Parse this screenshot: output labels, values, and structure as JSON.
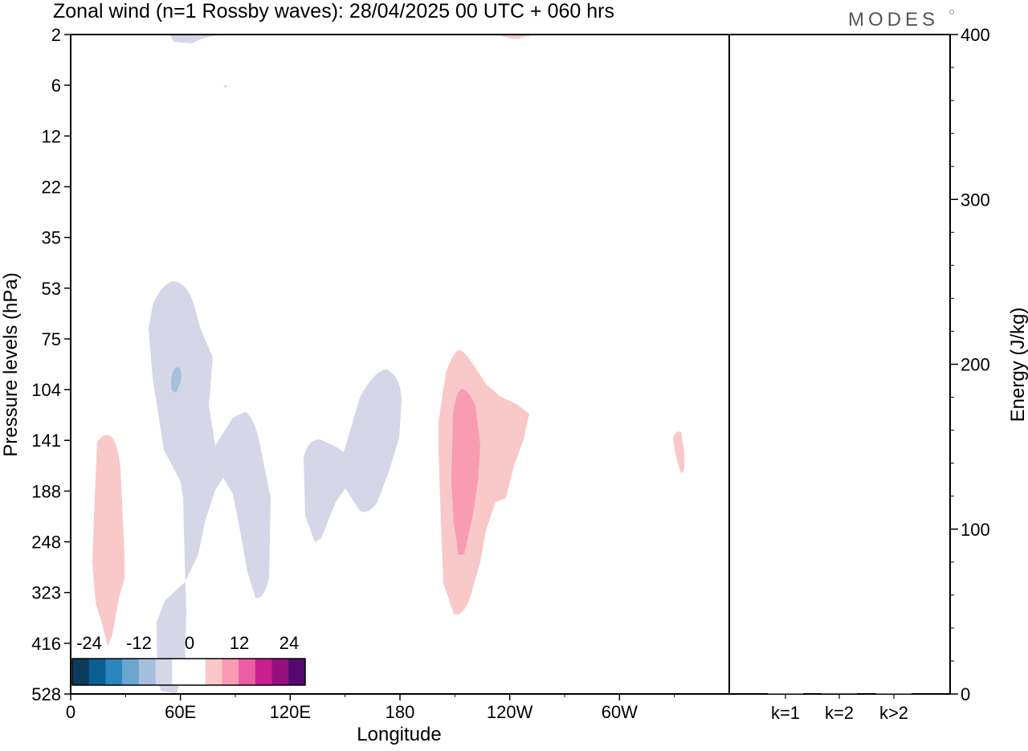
{
  "title": "Zonal wind (n=1 Rossby waves):  28/04/2025  00 UTC  + 060 hrs",
  "logo": "MODES",
  "chart_data": [
    {
      "type": "heatmap",
      "xlabel": "Longitude",
      "ylabel": "Pressure levels (hPa)",
      "x_ticks": [
        "0",
        "60E",
        "120E",
        "180",
        "120W",
        "60W"
      ],
      "x_tick_degrees": [
        0,
        60,
        120,
        180,
        240,
        300
      ],
      "xlim": [
        0,
        360
      ],
      "y_ticks": [
        "2",
        "6",
        "12",
        "22",
        "35",
        "53",
        "75",
        "104",
        "141",
        "188",
        "248",
        "323",
        "416",
        "528"
      ],
      "y_scale": "level index (top = 2 hPa, bottom = 528 hPa)",
      "colorbar": {
        "labels": [
          "-24",
          "-12",
          "0",
          "12",
          "24"
        ],
        "colors": [
          "#0d3b5c",
          "#0a5e91",
          "#2b86c0",
          "#6aa6d0",
          "#a5bfdc",
          "#d5d6e8",
          "#ffffff",
          "#ffffff",
          "#f9c9c9",
          "#f89bb3",
          "#ea5ea2",
          "#c81f8c",
          "#960f7f",
          "#550870"
        ]
      },
      "features": [
        {
          "sign": "negative",
          "level": "weak",
          "color": "#d5d6e8",
          "lon_range": [
            45,
            110
          ],
          "p_range": [
            "53",
            "528"
          ]
        },
        {
          "sign": "negative",
          "level": "weak",
          "color": "#d5d6e8",
          "lon_range": [
            127,
            182
          ],
          "p_range": [
            "104",
            "248"
          ]
        },
        {
          "sign": "negative",
          "level": "moderate",
          "color": "#a5bfdc",
          "lon_range": [
            55,
            60
          ],
          "p_range": [
            "104",
            "104"
          ]
        },
        {
          "sign": "positive",
          "level": "weak",
          "color": "#f9c9c9",
          "lon_range": [
            12,
            30
          ],
          "p_range": [
            "141",
            "416"
          ]
        },
        {
          "sign": "positive",
          "level": "weak",
          "color": "#f9c9c9",
          "lon_range": [
            202,
            250
          ],
          "p_range": [
            "75",
            "323"
          ]
        },
        {
          "sign": "positive",
          "level": "moderate",
          "color": "#f89bb3",
          "lon_range": [
            210,
            225
          ],
          "p_range": [
            "104",
            "248"
          ]
        },
        {
          "sign": "positive",
          "level": "weak",
          "color": "#f9c9c9",
          "lon_range": [
            331,
            336
          ],
          "p_range": [
            "141",
            "188"
          ]
        }
      ]
    },
    {
      "type": "bar",
      "ylabel": "Energy (J/kg)",
      "categories": [
        "k=1",
        "k=2",
        "k>2"
      ],
      "values": [
        0.5,
        0.3,
        0.5
      ],
      "ylim": [
        0,
        400
      ],
      "y_ticks": [
        "0",
        "100",
        "200",
        "300",
        "400"
      ]
    }
  ]
}
